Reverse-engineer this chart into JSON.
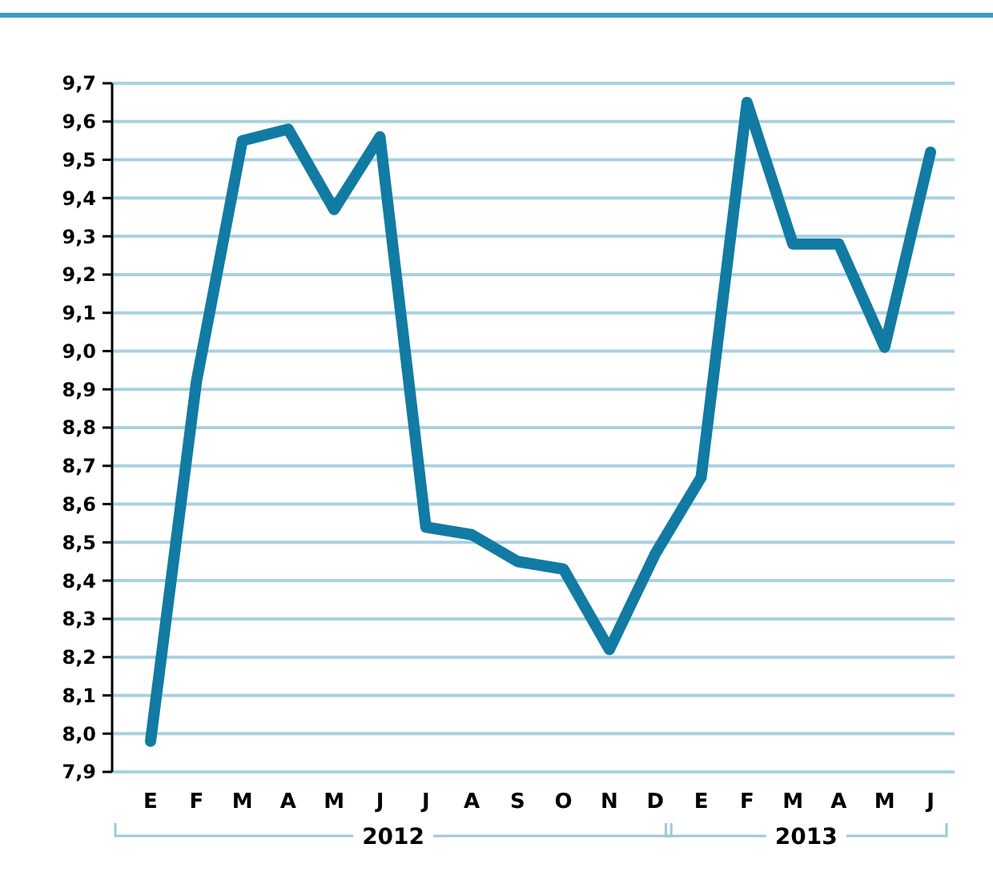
{
  "chart_data": {
    "type": "line",
    "categories": [
      "E",
      "F",
      "M",
      "A",
      "M",
      "J",
      "J",
      "A",
      "S",
      "O",
      "N",
      "D",
      "E",
      "F",
      "M",
      "A",
      "M",
      "J"
    ],
    "series": [
      {
        "color": "#117ba3",
        "values": [
          7.98,
          8.92,
          9.55,
          9.58,
          9.37,
          9.56,
          8.54,
          8.52,
          8.45,
          8.43,
          8.22,
          8.47,
          8.67,
          9.65,
          9.28,
          9.28,
          9.01,
          9.52
        ]
      }
    ],
    "ylim": [
      7.9,
      9.7
    ],
    "yticks": [
      {
        "value": 7.9,
        "label": "7,9"
      },
      {
        "value": 8.0,
        "label": "8,0"
      },
      {
        "value": 8.1,
        "label": "8,1"
      },
      {
        "value": 8.2,
        "label": "8,2"
      },
      {
        "value": 8.3,
        "label": "8,3"
      },
      {
        "value": 8.4,
        "label": "8,4"
      },
      {
        "value": 8.5,
        "label": "8,5"
      },
      {
        "value": 8.6,
        "label": "8,6"
      },
      {
        "value": 8.7,
        "label": "8,7"
      },
      {
        "value": 8.8,
        "label": "8,8"
      },
      {
        "value": 8.9,
        "label": "8,9"
      },
      {
        "value": 9.0,
        "label": "9,0"
      },
      {
        "value": 9.1,
        "label": "9,1"
      },
      {
        "value": 9.2,
        "label": "9,2"
      },
      {
        "value": 9.3,
        "label": "9,3"
      },
      {
        "value": 9.4,
        "label": "9,4"
      },
      {
        "value": 9.5,
        "label": "9,5"
      },
      {
        "value": 9.6,
        "label": "9,6"
      },
      {
        "value": 9.7,
        "label": "9,7"
      }
    ],
    "grid": "y",
    "marker": "none",
    "line_style": "solid",
    "annotations": [
      "2012",
      "2013"
    ]
  }
}
